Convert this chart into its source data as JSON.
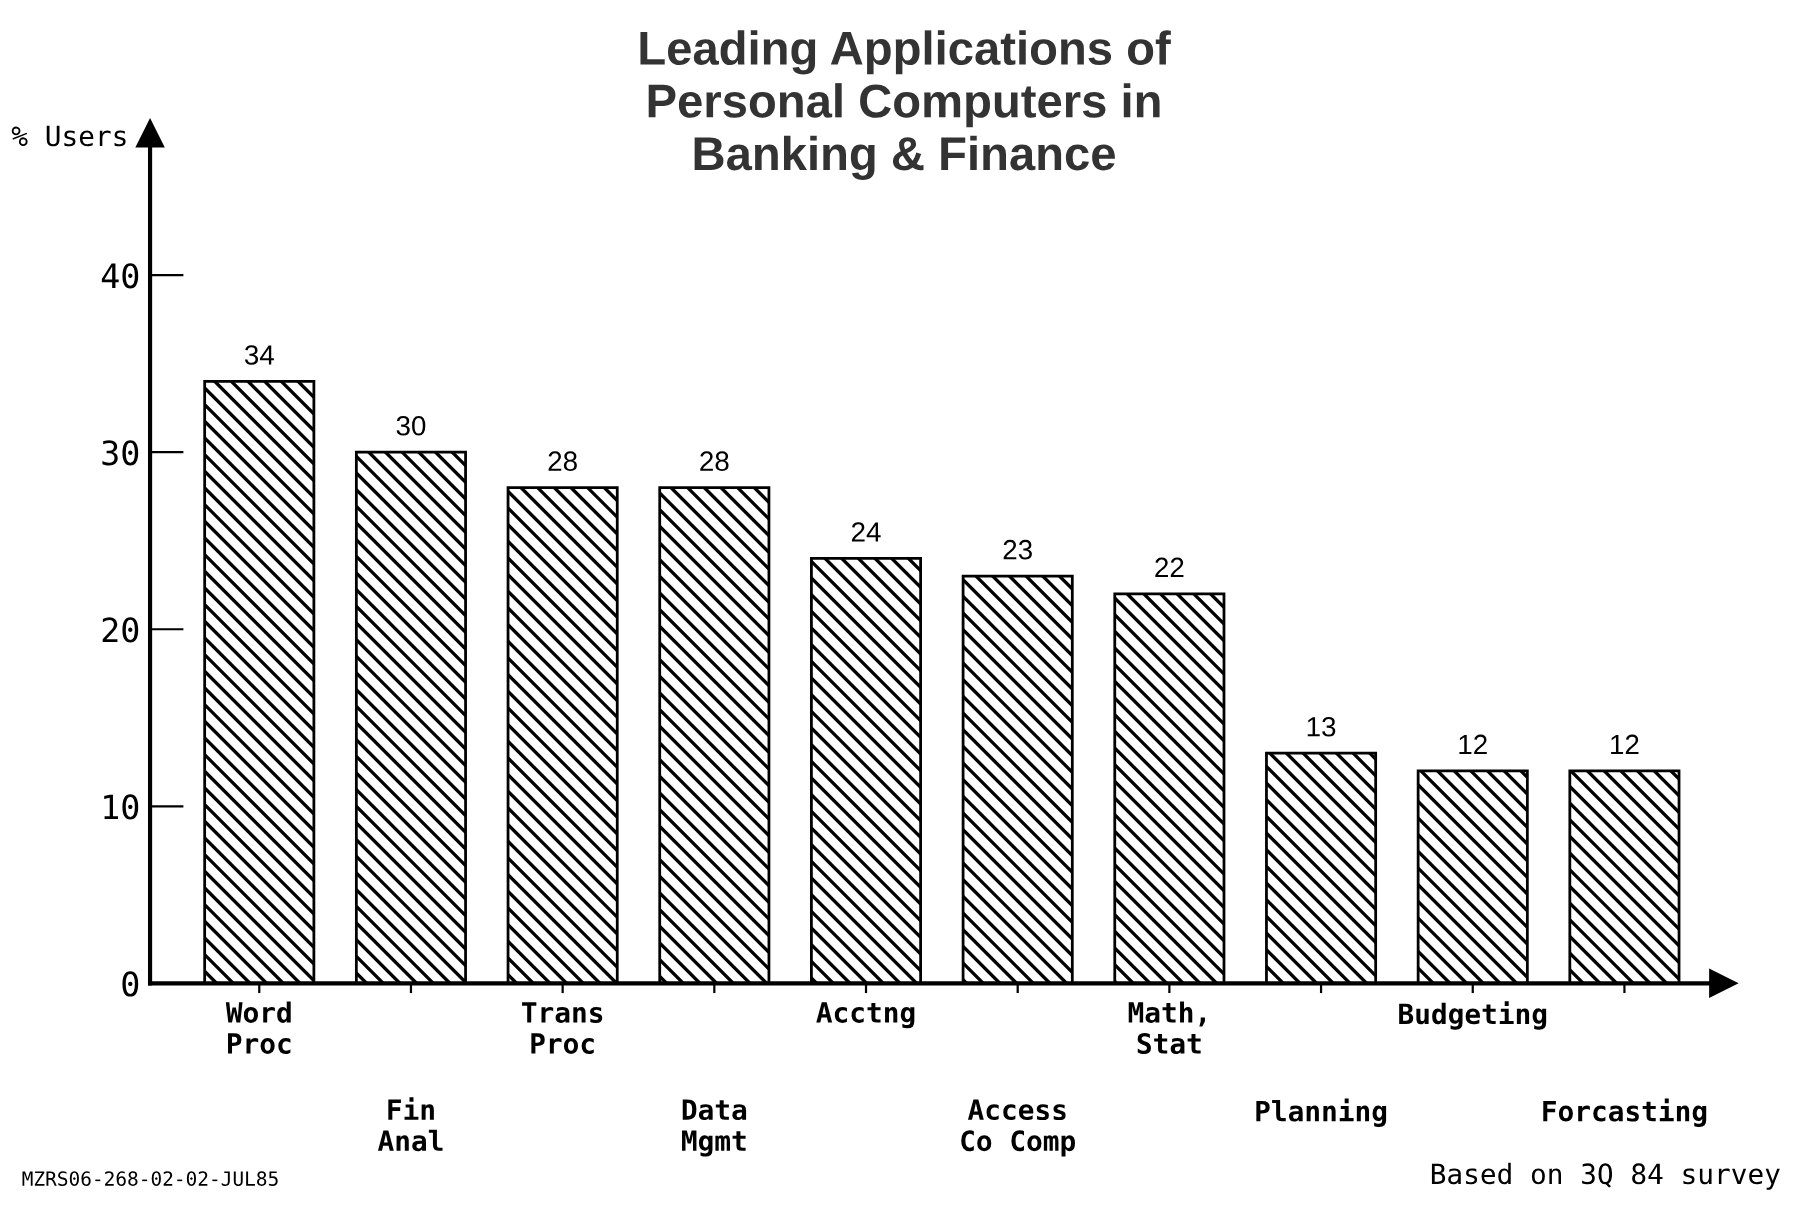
{
  "chart_data": {
    "type": "bar",
    "title": "Leading Applications of\nPersonal Computers in\nBanking & Finance",
    "ylabel": "% Users",
    "categories": [
      "Word\nProc",
      "Fin\nAnal",
      "Trans\nProc",
      "Data\nMgmt",
      "Acctng",
      "Access\nCo Comp",
      "Math,\nStat",
      "Planning",
      "Budgeting",
      "Forcasting"
    ],
    "values": [
      34,
      30,
      28,
      28,
      24,
      23,
      22,
      13,
      12,
      12
    ],
    "color": "#000000",
    "ylim": [
      0,
      48
    ],
    "yticks": [
      0,
      10,
      20,
      30,
      40
    ],
    "data_labels": true,
    "grid": false,
    "annotations": [
      "MZRS06-268-02-02-JUL85",
      "Based on 3Q 84 survey"
    ]
  }
}
